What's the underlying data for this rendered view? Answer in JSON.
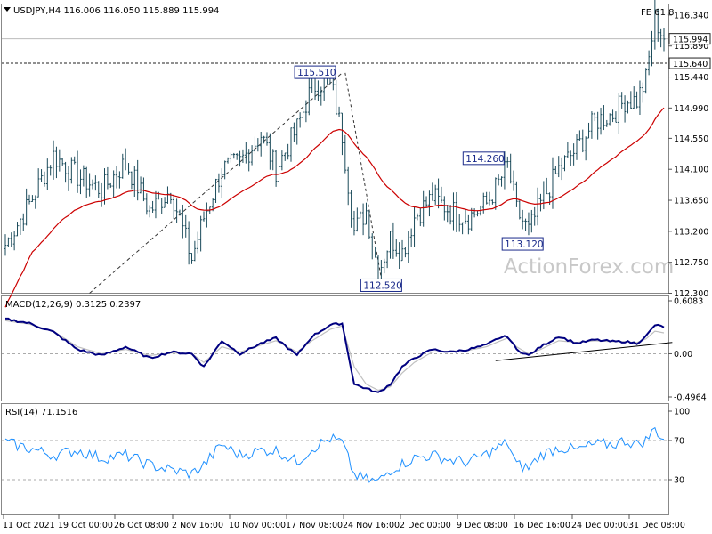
{
  "header": {
    "symbol_line": "USDJPY,H4  116.006 116.050 115.889 115.994",
    "fe_label": "FE 61.8"
  },
  "watermark": "ActionForex.com",
  "colors": {
    "candles": "#1a4a5a",
    "ma": "#cc0000",
    "macd": "#000080",
    "signal": "#c0c0c0",
    "rsi": "#1e90ff",
    "grid": "#aaaaaa",
    "last_price_box": "#222222"
  },
  "chart_data": [
    {
      "type": "candlestick",
      "name": "price",
      "ylim": [
        112.3,
        116.5
      ],
      "y_ticks": [
        "116.340",
        "115.890",
        "115.440",
        "114.990",
        "114.550",
        "114.100",
        "113.650",
        "113.200",
        "112.750",
        "112.300"
      ],
      "last_price": "115.994",
      "level_line": "115.640",
      "x_tick_labels": [
        "11 Oct 2021",
        "19 Oct 00:00",
        "26 Oct 08:00",
        "2 Nov 16:00",
        "10 Nov 00:00",
        "17 Nov 08:00",
        "24 Nov 16:00",
        "2 Dec 00:00",
        "9 Dec 08:00",
        "16 Dec 16:00",
        "24 Dec 00:00",
        "31 Dec 08:00"
      ],
      "anchor_points": [
        {
          "bar": 0,
          "close": 113.0
        },
        {
          "bar": 8,
          "close": 113.6
        },
        {
          "bar": 16,
          "close": 114.3
        },
        {
          "bar": 24,
          "close": 114.0
        },
        {
          "bar": 32,
          "close": 113.8
        },
        {
          "bar": 40,
          "close": 114.2
        },
        {
          "bar": 48,
          "close": 113.5
        },
        {
          "bar": 55,
          "close": 113.8
        },
        {
          "bar": 62,
          "close": 112.8
        },
        {
          "bar": 66,
          "close": 113.4
        },
        {
          "bar": 72,
          "close": 114.1
        },
        {
          "bar": 78,
          "close": 114.2
        },
        {
          "bar": 85,
          "close": 114.6
        },
        {
          "bar": 90,
          "close": 114.1
        },
        {
          "bar": 97,
          "close": 114.7
        },
        {
          "bar": 102,
          "close": 115.3
        },
        {
          "bar": 108,
          "close": 115.4
        },
        {
          "bar": 112,
          "close": 114.6
        },
        {
          "bar": 116,
          "close": 113.2
        },
        {
          "bar": 120,
          "close": 113.5
        },
        {
          "bar": 124,
          "close": 112.6
        },
        {
          "bar": 128,
          "close": 113.1
        },
        {
          "bar": 132,
          "close": 112.9
        },
        {
          "bar": 136,
          "close": 113.4
        },
        {
          "bar": 142,
          "close": 113.7
        },
        {
          "bar": 148,
          "close": 113.5
        },
        {
          "bar": 154,
          "close": 113.4
        },
        {
          "bar": 160,
          "close": 113.6
        },
        {
          "bar": 164,
          "close": 113.9
        },
        {
          "bar": 167,
          "close": 114.15
        },
        {
          "bar": 170,
          "close": 113.5
        },
        {
          "bar": 174,
          "close": 113.2
        },
        {
          "bar": 178,
          "close": 113.6
        },
        {
          "bar": 184,
          "close": 114.1
        },
        {
          "bar": 190,
          "close": 114.4
        },
        {
          "bar": 196,
          "close": 114.8
        },
        {
          "bar": 202,
          "close": 114.9
        },
        {
          "bar": 206,
          "close": 115.1
        },
        {
          "bar": 210,
          "close": 115.1
        },
        {
          "bar": 213,
          "close": 115.4
        },
        {
          "bar": 216,
          "close": 116.3
        },
        {
          "bar": 219,
          "close": 115.99
        }
      ],
      "annotations": [
        {
          "text": "115.510",
          "bar": 111,
          "price": 115.51,
          "position": "left"
        },
        {
          "text": "112.520",
          "bar": 125,
          "price": 112.52,
          "position": "below"
        },
        {
          "text": "114.260",
          "bar": 167,
          "price": 114.26,
          "position": "left"
        },
        {
          "text": "113.120",
          "bar": 172,
          "price": 113.12,
          "position": "below"
        }
      ],
      "trendline": {
        "from": {
          "bar": 28,
          "price": 112.3
        },
        "to": {
          "bar": 112,
          "price": 115.5
        }
      },
      "fall_line": {
        "from": {
          "bar": 113,
          "price": 115.5
        },
        "to": {
          "bar": 125,
          "price": 112.52
        }
      }
    },
    {
      "type": "line",
      "name": "MACD(12,26,9) 0.3125 0.2397",
      "ylim": [
        -0.4964,
        0.6083
      ],
      "y_ticks": [
        "0.6083",
        "0.00",
        "-0.4964"
      ],
      "x": [
        0,
        8,
        16,
        24,
        32,
        40,
        48,
        55,
        62,
        66,
        72,
        78,
        85,
        90,
        97,
        102,
        108,
        112,
        116,
        120,
        124,
        128,
        132,
        136,
        142,
        148,
        154,
        160,
        164,
        167,
        170,
        174,
        178,
        184,
        190,
        196,
        202,
        206,
        210,
        213,
        216,
        219
      ],
      "macd": [
        0.4,
        0.35,
        0.25,
        0.05,
        -0.02,
        0.08,
        -0.05,
        0.02,
        0.0,
        -0.15,
        0.15,
        0.0,
        0.12,
        0.18,
        -0.02,
        0.2,
        0.33,
        0.35,
        -0.35,
        -0.4,
        -0.45,
        -0.35,
        -0.15,
        -0.05,
        0.05,
        0.02,
        0.05,
        0.1,
        0.18,
        0.2,
        0.05,
        -0.02,
        0.08,
        0.2,
        0.12,
        0.16,
        0.14,
        0.14,
        0.12,
        0.2,
        0.33,
        0.31
      ],
      "signal": [
        0.38,
        0.34,
        0.26,
        0.08,
        0.0,
        0.05,
        -0.02,
        0.01,
        0.0,
        -0.1,
        0.08,
        0.02,
        0.1,
        0.15,
        0.02,
        0.15,
        0.28,
        0.32,
        -0.15,
        -0.35,
        -0.42,
        -0.38,
        -0.22,
        -0.1,
        0.02,
        0.03,
        0.04,
        0.08,
        0.14,
        0.18,
        0.08,
        0.0,
        0.05,
        0.15,
        0.13,
        0.15,
        0.14,
        0.14,
        0.13,
        0.17,
        0.26,
        0.24
      ],
      "trendline": {
        "from": {
          "bar": 163,
          "value": -0.08
        },
        "to": {
          "bar": 220,
          "value": 0.13
        }
      }
    },
    {
      "type": "line",
      "name": "RSI(14) 71.1516",
      "ylim": [
        0,
        100
      ],
      "y_ticks": [
        "100",
        "70",
        "30",
        "0"
      ],
      "x": [
        0,
        8,
        16,
        24,
        32,
        40,
        48,
        55,
        62,
        66,
        72,
        78,
        85,
        90,
        97,
        102,
        108,
        112,
        116,
        120,
        124,
        128,
        132,
        136,
        142,
        148,
        154,
        160,
        164,
        167,
        170,
        174,
        178,
        184,
        190,
        196,
        202,
        206,
        210,
        213,
        216,
        219
      ],
      "values": [
        68,
        62,
        55,
        60,
        52,
        55,
        45,
        40,
        36,
        45,
        66,
        55,
        60,
        60,
        48,
        62,
        72,
        68,
        35,
        30,
        28,
        40,
        46,
        52,
        55,
        50,
        48,
        56,
        63,
        68,
        45,
        42,
        55,
        63,
        60,
        66,
        66,
        70,
        66,
        70,
        82,
        71
      ]
    }
  ]
}
